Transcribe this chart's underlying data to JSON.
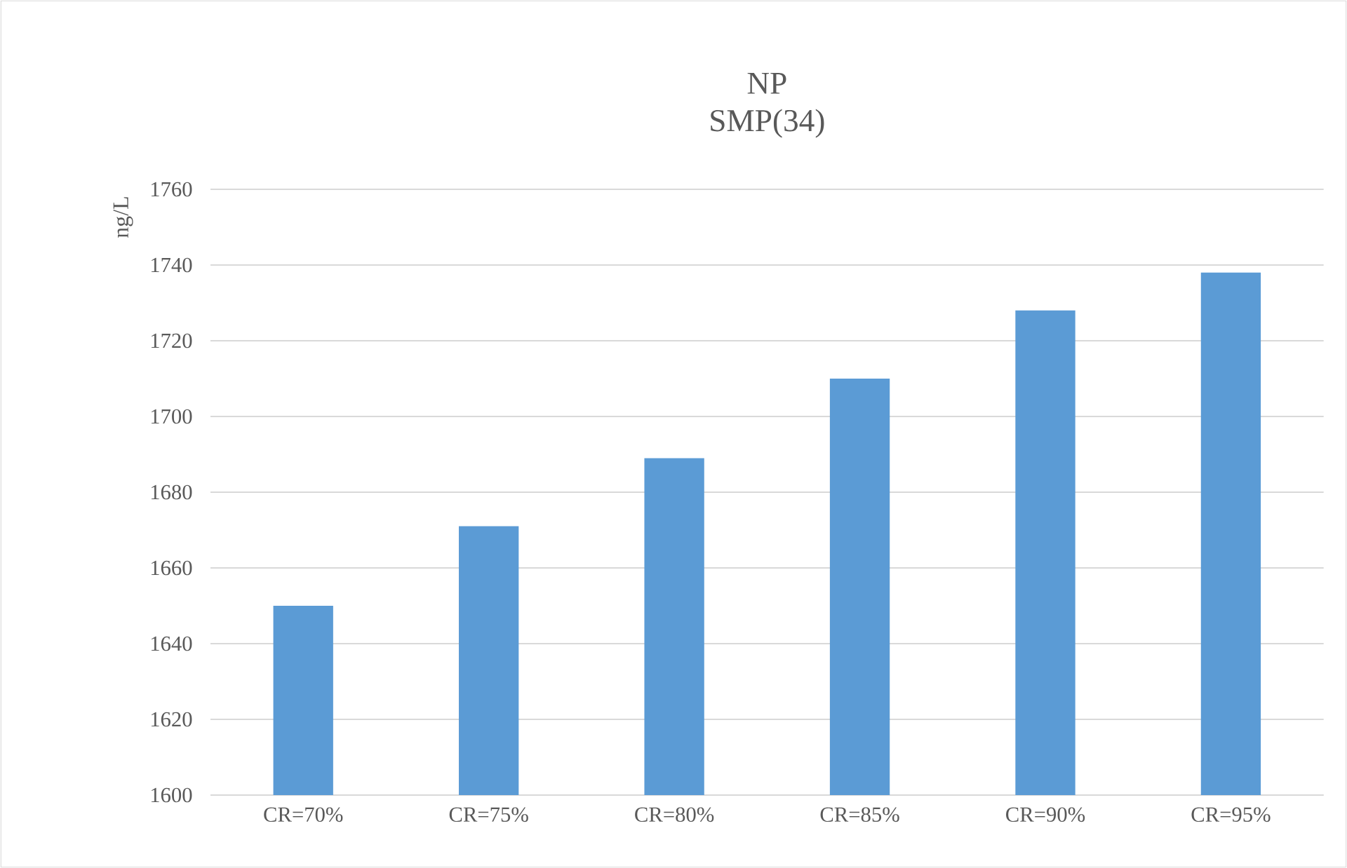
{
  "chart_data": {
    "type": "bar",
    "title": "NP",
    "subtitle": "SMP(34)",
    "ylabel": "ng/L",
    "categories": [
      "CR=70%",
      "CR=75%",
      "CR=80%",
      "CR=85%",
      "CR=90%",
      "CR=95%"
    ],
    "values": [
      1650,
      1671,
      1689,
      1710,
      1728,
      1738
    ],
    "color": "#5b9bd5",
    "ylim": [
      1600,
      1760
    ],
    "yticks": [
      1600,
      1620,
      1640,
      1660,
      1680,
      1700,
      1720,
      1740,
      1760
    ],
    "grid": "y"
  }
}
